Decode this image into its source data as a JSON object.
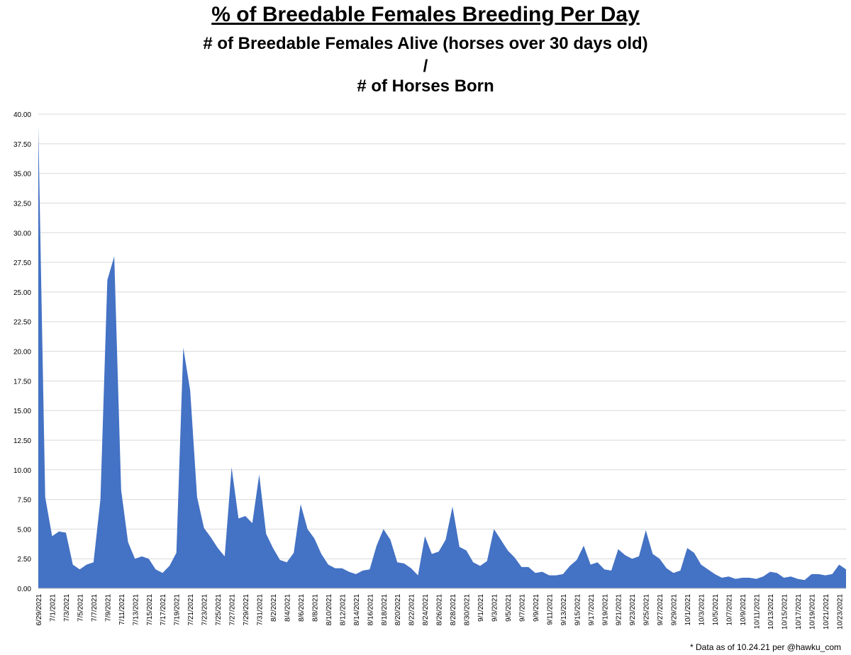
{
  "titles": {
    "main": "% of Breedable Females Breeding Per Day",
    "line1": "# of Breedable Females Alive (horses over 30 days old)",
    "divider": "/",
    "line2": "# of Horses Born"
  },
  "footnote": "* Data as of 10.24.21 per @hawku_com",
  "chart_data": {
    "type": "area",
    "title": "% of Breedable Females Breeding Per Day",
    "xlabel": "",
    "ylabel": "",
    "ylim": [
      0,
      40
    ],
    "y_ticks": [
      "0.00",
      "2.50",
      "5.00",
      "7.50",
      "10.00",
      "12.50",
      "15.00",
      "17.50",
      "20.00",
      "22.50",
      "25.00",
      "27.50",
      "30.00",
      "32.50",
      "35.00",
      "37.50",
      "40.00"
    ],
    "grid": true,
    "legend": "none",
    "color": "#4472C4",
    "x_tick_labels": [
      "6/29/2021",
      "7/1/2021",
      "7/3/2021",
      "7/5/2021",
      "7/7/2021",
      "7/9/2021",
      "7/11/2021",
      "7/13/2021",
      "7/15/2021",
      "7/17/2021",
      "7/19/2021",
      "7/21/2021",
      "7/23/2021",
      "7/25/2021",
      "7/27/2021",
      "7/29/2021",
      "7/31/2021",
      "8/2/2021",
      "8/4/2021",
      "8/6/2021",
      "8/8/2021",
      "8/10/2021",
      "8/12/2021",
      "8/14/2021",
      "8/16/2021",
      "8/18/2021",
      "8/20/2021",
      "8/22/2021",
      "8/24/2021",
      "8/26/2021",
      "8/28/2021",
      "8/30/2021",
      "9/1/2021",
      "9/3/2021",
      "9/5/2021",
      "9/7/2021",
      "9/9/2021",
      "9/11/2021",
      "9/13/2021",
      "9/15/2021",
      "9/17/2021",
      "9/19/2021",
      "9/21/2021",
      "9/23/2021",
      "9/25/2021",
      "9/27/2021",
      "9/29/2021",
      "10/1/2021",
      "10/3/2021",
      "10/5/2021",
      "10/7/2021",
      "10/9/2021",
      "10/11/2021",
      "10/13/2021",
      "10/15/2021",
      "10/17/2021",
      "10/19/2021",
      "10/21/2021",
      "10/23/2021"
    ],
    "x": [
      "6/29/2021",
      "6/30/2021",
      "7/1/2021",
      "7/2/2021",
      "7/3/2021",
      "7/4/2021",
      "7/5/2021",
      "7/6/2021",
      "7/7/2021",
      "7/8/2021",
      "7/9/2021",
      "7/10/2021",
      "7/11/2021",
      "7/12/2021",
      "7/13/2021",
      "7/14/2021",
      "7/15/2021",
      "7/16/2021",
      "7/17/2021",
      "7/18/2021",
      "7/19/2021",
      "7/20/2021",
      "7/21/2021",
      "7/22/2021",
      "7/23/2021",
      "7/24/2021",
      "7/25/2021",
      "7/26/2021",
      "7/27/2021",
      "7/28/2021",
      "7/29/2021",
      "7/30/2021",
      "7/31/2021",
      "8/1/2021",
      "8/2/2021",
      "8/3/2021",
      "8/4/2021",
      "8/5/2021",
      "8/6/2021",
      "8/7/2021",
      "8/8/2021",
      "8/9/2021",
      "8/10/2021",
      "8/11/2021",
      "8/12/2021",
      "8/13/2021",
      "8/14/2021",
      "8/15/2021",
      "8/16/2021",
      "8/17/2021",
      "8/18/2021",
      "8/19/2021",
      "8/20/2021",
      "8/21/2021",
      "8/22/2021",
      "8/23/2021",
      "8/24/2021",
      "8/25/2021",
      "8/26/2021",
      "8/27/2021",
      "8/28/2021",
      "8/29/2021",
      "8/30/2021",
      "8/31/2021",
      "9/1/2021",
      "9/2/2021",
      "9/3/2021",
      "9/4/2021",
      "9/5/2021",
      "9/6/2021",
      "9/7/2021",
      "9/8/2021",
      "9/9/2021",
      "9/10/2021",
      "9/11/2021",
      "9/12/2021",
      "9/13/2021",
      "9/14/2021",
      "9/15/2021",
      "9/16/2021",
      "9/17/2021",
      "9/18/2021",
      "9/19/2021",
      "9/20/2021",
      "9/21/2021",
      "9/22/2021",
      "9/23/2021",
      "9/24/2021",
      "9/25/2021",
      "9/26/2021",
      "9/27/2021",
      "9/28/2021",
      "9/29/2021",
      "9/30/2021",
      "10/1/2021",
      "10/2/2021",
      "10/3/2021",
      "10/4/2021",
      "10/5/2021",
      "10/6/2021",
      "10/7/2021",
      "10/8/2021",
      "10/9/2021",
      "10/10/2021",
      "10/11/2021",
      "10/12/2021",
      "10/13/2021",
      "10/14/2021",
      "10/15/2021",
      "10/16/2021",
      "10/17/2021",
      "10/18/2021",
      "10/19/2021",
      "10/20/2021",
      "10/21/2021",
      "10/22/2021",
      "10/23/2021",
      "10/24/2021"
    ],
    "values": [
      39.0,
      7.7,
      4.4,
      4.8,
      4.7,
      2.0,
      1.6,
      2.0,
      2.2,
      7.5,
      26.0,
      28.0,
      8.3,
      3.9,
      2.5,
      2.7,
      2.5,
      1.6,
      1.3,
      1.9,
      3.0,
      20.3,
      16.7,
      7.7,
      5.1,
      4.3,
      3.4,
      2.7,
      10.2,
      5.9,
      6.1,
      5.5,
      9.6,
      4.6,
      3.4,
      2.4,
      2.2,
      3.0,
      7.1,
      5.0,
      4.2,
      2.9,
      2.0,
      1.7,
      1.7,
      1.4,
      1.2,
      1.5,
      1.6,
      3.6,
      5.0,
      4.1,
      2.2,
      2.1,
      1.7,
      1.1,
      4.4,
      2.9,
      3.1,
      4.1,
      6.9,
      3.5,
      3.2,
      2.2,
      1.9,
      2.3,
      5.0,
      4.1,
      3.2,
      2.6,
      1.8,
      1.8,
      1.3,
      1.4,
      1.1,
      1.1,
      1.2,
      1.9,
      2.4,
      3.6,
      2.0,
      2.2,
      1.6,
      1.5,
      3.3,
      2.8,
      2.5,
      2.7,
      4.9,
      2.9,
      2.5,
      1.7,
      1.3,
      1.5,
      3.4,
      3.0,
      2.0,
      1.6,
      1.2,
      0.9,
      1.0,
      0.8,
      0.9,
      0.9,
      0.8,
      1.0,
      1.4,
      1.3,
      0.9,
      1.0,
      0.8,
      0.7,
      1.2,
      1.2,
      1.1,
      1.2,
      2.0,
      1.6
    ]
  }
}
